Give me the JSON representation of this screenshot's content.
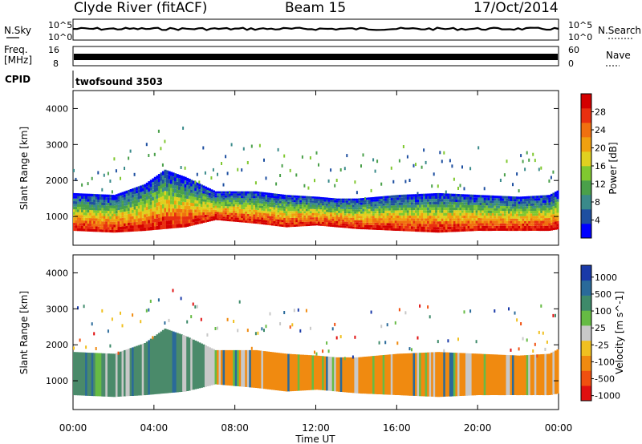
{
  "header": {
    "station": "Clyde River (fitACF)",
    "beam": "Beam 15",
    "date": "17/Oct/2014"
  },
  "top_panels": {
    "nsky_label": "N.Sky",
    "nsearch_label": "N.Search",
    "freq_label": "Freq.",
    "freq_unit": "[MHz]",
    "nave_label": "Nave",
    "cpid_label": "CPID",
    "cpid_value": "twofsound 3503",
    "nsky_tick_hi": "10^5",
    "nsky_tick_lo": "10^0",
    "freq_tick_hi": "16",
    "freq_tick_lo": "8",
    "nave_tick_hi": "60",
    "nave_tick_lo": "0"
  },
  "chart_data": [
    {
      "type": "heatmap",
      "parameter": "Power",
      "ylabel": "Slant Range [km]",
      "ylim": [
        200,
        4500
      ],
      "yticks": [
        "1000",
        "2000",
        "3000",
        "4000"
      ],
      "colorbar_label": "Power [dB]",
      "colorbar_ticks": [
        "4",
        "8",
        "12",
        "16",
        "20",
        "24",
        "28"
      ],
      "colorbar_colors": [
        "#0000ff",
        "#1e4fa0",
        "#3a8a8a",
        "#4aa04a",
        "#80c830",
        "#e0d020",
        "#f0a010",
        "#f07010",
        "#e83010",
        "#d40000"
      ],
      "profile": {
        "x": [
          0,
          2,
          3.5,
          4.5,
          5.5,
          7,
          9,
          10.5,
          12,
          13,
          14,
          16,
          18,
          20,
          22,
          23.5,
          24
        ],
        "bottom_km": [
          600,
          550,
          600,
          650,
          700,
          900,
          800,
          700,
          750,
          700,
          650,
          600,
          550,
          600,
          600,
          600,
          650
        ],
        "top_km": [
          1650,
          1600,
          1900,
          2300,
          2100,
          1700,
          1700,
          1600,
          1550,
          1500,
          1500,
          1600,
          1650,
          1600,
          1550,
          1600,
          1750
        ]
      }
    },
    {
      "type": "heatmap",
      "parameter": "Velocity",
      "ylabel": "Slant Range [km]",
      "ylim": [
        200,
        4500
      ],
      "yticks": [
        "1000",
        "2000",
        "3000",
        "4000"
      ],
      "xlabel": "Time UT",
      "xticks": [
        "00:00",
        "04:00",
        "08:00",
        "12:00",
        "16:00",
        "20:00",
        "00:00"
      ],
      "xlim": [
        0,
        24
      ],
      "colorbar_label": "Velocity [m s^-1]",
      "colorbar_ticks": [
        "1000",
        "500",
        "100",
        "25",
        "-25",
        "-100",
        "-500",
        "-1000"
      ],
      "colorbar_colors": [
        "#1a3aa8",
        "#2a6a9a",
        "#3e8a6a",
        "#66bb44",
        "#c8c8c8",
        "#f0c020",
        "#f08a10",
        "#f05010",
        "#e01010"
      ],
      "segments": [
        {
          "x": [
            0,
            6.5
          ],
          "color": "#4a8a6a"
        },
        {
          "x": [
            6.5,
            7
          ],
          "color": "#c8c8c8"
        },
        {
          "x": [
            7,
            12.5
          ],
          "color": "#f08a10"
        },
        {
          "x": [
            12.5,
            13
          ],
          "color": "#c8c8c8"
        },
        {
          "x": [
            13,
            24
          ],
          "color": "#f08a10"
        }
      ]
    }
  ]
}
